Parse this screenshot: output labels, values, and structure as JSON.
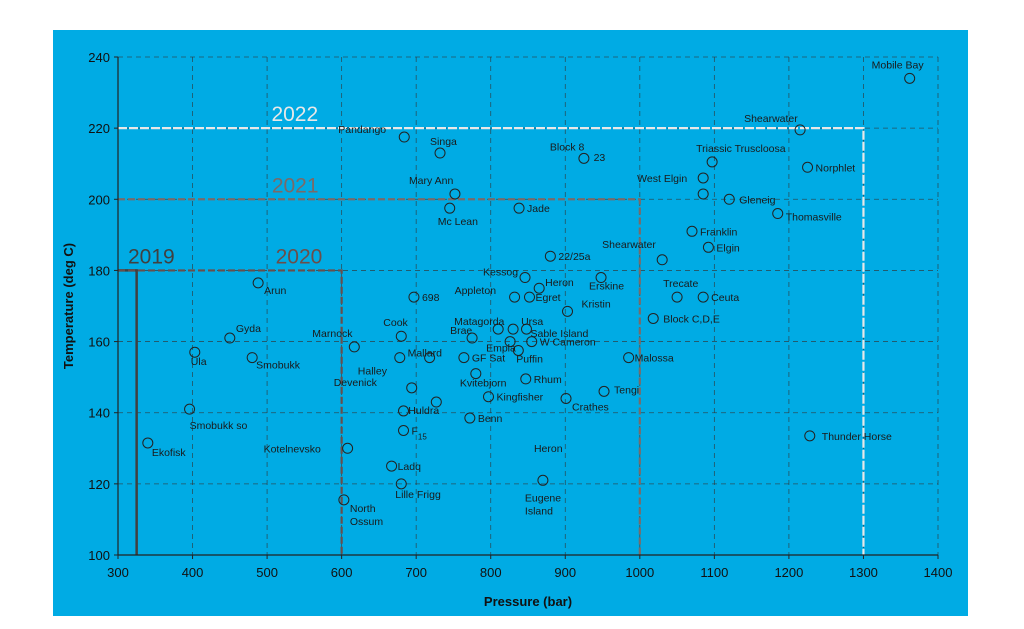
{
  "chart_data": {
    "type": "scatter",
    "title": "",
    "xlabel": "Pressure (bar)",
    "ylabel": "Temperature (deg C)",
    "xlim": [
      300,
      1400
    ],
    "ylim": [
      100,
      240
    ],
    "xticks": [
      300,
      400,
      500,
      600,
      700,
      800,
      900,
      1000,
      1100,
      1200,
      1300,
      1400
    ],
    "yticks": [
      100,
      120,
      140,
      160,
      180,
      200,
      220,
      240
    ],
    "grid": true,
    "colors": {
      "background": "#00abe4",
      "text": "#111111",
      "points": "#1a1a1a"
    },
    "regions": [
      {
        "label": "2019",
        "pressure_max": 325,
        "temperature_max": 180,
        "color": "#404040"
      },
      {
        "label": "2020",
        "pressure_max": 600,
        "temperature_max": 180,
        "color": "#6b4e4a"
      },
      {
        "label": "2021",
        "pressure_max": 1000,
        "temperature_max": 200,
        "color": "#7a6a68"
      },
      {
        "label": "2022",
        "pressure_max": 1300,
        "temperature_max": 220,
        "color": "#e8e8e8"
      }
    ],
    "points": [
      {
        "label": "Mobile Bay",
        "x": 1362,
        "y": 234
      },
      {
        "label": "Shearwater",
        "x": 1215,
        "y": 219.5
      },
      {
        "label": "Triassic Truscloosa",
        "x": 1097,
        "y": 210.5
      },
      {
        "label": "Norphlet",
        "x": 1225,
        "y": 209
      },
      {
        "label": "West Elgin",
        "x": 1085,
        "y": 206
      },
      {
        "label": "",
        "x": 1085,
        "y": 201.5
      },
      {
        "label": "Gleneig",
        "x": 1120,
        "y": 200
      },
      {
        "label": "Thomasville",
        "x": 1185,
        "y": 196
      },
      {
        "label": "Franklin",
        "x": 1070,
        "y": 191
      },
      {
        "label": "Elgin",
        "x": 1092,
        "y": 186.5
      },
      {
        "label": "Shearwater",
        "x": 1030,
        "y": 183
      },
      {
        "label": "Trecate",
        "x": 1050,
        "y": 172.5
      },
      {
        "label": "Ceuta",
        "x": 1085,
        "y": 172.5
      },
      {
        "label": "Block C,D,E",
        "x": 1018,
        "y": 166.5
      },
      {
        "label": "Malossa",
        "x": 985,
        "y": 155.5
      },
      {
        "label": "Tengi",
        "x": 952,
        "y": 146
      },
      {
        "label": "Crathes",
        "x": 901,
        "y": 144
      },
      {
        "label": "Thunder Horse",
        "x": 1228,
        "y": 133.5
      },
      {
        "label": "Pandango",
        "x": 684,
        "y": 217.5
      },
      {
        "label": "Singa",
        "x": 732,
        "y": 213
      },
      {
        "label": "Block 8",
        "x": 925,
        "y": 211.5
      },
      {
        "label": "Mary Ann",
        "x": 752,
        "y": 201.5
      },
      {
        "label": "Mc Lean",
        "x": 745,
        "y": 197.5
      },
      {
        "label": "Jade",
        "x": 838,
        "y": 197.5
      },
      {
        "label": "22/25a",
        "x": 880,
        "y": 184
      },
      {
        "label": "Kessog",
        "x": 846,
        "y": 178
      },
      {
        "label": "Heron",
        "x": 865,
        "y": 175
      },
      {
        "label": "Erskine",
        "x": 948,
        "y": 178
      },
      {
        "label": "Appleton",
        "x": 832,
        "y": 172.5
      },
      {
        "label": "Egret",
        "x": 852,
        "y": 172.5
      },
      {
        "label": "Kristin",
        "x": 903,
        "y": 168.5
      },
      {
        "label": "698",
        "x": 697,
        "y": 172.5
      },
      {
        "label": "Arun",
        "x": 488,
        "y": 176.5
      },
      {
        "label": "Matagorda",
        "x": 810,
        "y": 163.5
      },
      {
        "label": "Ursa",
        "x": 830,
        "y": 163.5
      },
      {
        "label": "Sable Island",
        "x": 848,
        "y": 163.5
      },
      {
        "label": "Brae",
        "x": 775,
        "y": 161
      },
      {
        "label": "Empla",
        "x": 826,
        "y": 160
      },
      {
        "label": "W Cameron",
        "x": 855,
        "y": 160
      },
      {
        "label": "Cook",
        "x": 680,
        "y": 161.5
      },
      {
        "label": "Marnock",
        "x": 617,
        "y": 158.5
      },
      {
        "label": "Mallard",
        "x": 718,
        "y": 155.5
      },
      {
        "label": "Halley",
        "x": 678,
        "y": 155.5
      },
      {
        "label": "GF Sat",
        "x": 764,
        "y": 155.5
      },
      {
        "label": "Puffin",
        "x": 837,
        "y": 157.5
      },
      {
        "label": "Gyda",
        "x": 450,
        "y": 161
      },
      {
        "label": "Ula",
        "x": 403,
        "y": 157
      },
      {
        "label": "Smobukk",
        "x": 480,
        "y": 155.5
      },
      {
        "label": "Kvitebjorn",
        "x": 780,
        "y": 151
      },
      {
        "label": "Rhum",
        "x": 847,
        "y": 149.5
      },
      {
        "label": "Devenick",
        "x": 694,
        "y": 147
      },
      {
        "label": "Kingfisher",
        "x": 797,
        "y": 144.5
      },
      {
        "label": "Huldra",
        "x": 727,
        "y": 143
      },
      {
        "label": "",
        "x": 683,
        "y": 140.5
      },
      {
        "label": "Benn",
        "x": 772,
        "y": 138.5
      },
      {
        "label": "Smobukk so",
        "x": 396,
        "y": 141
      },
      {
        "label": "F15",
        "x": 683,
        "y": 135
      },
      {
        "label": "Ekofisk",
        "x": 340,
        "y": 131.5
      },
      {
        "label": "Kotelnevsko",
        "x": 608,
        "y": 130
      },
      {
        "label": "Ladq",
        "x": 667,
        "y": 125
      },
      {
        "label": "Lille Frigg",
        "x": 680,
        "y": 120
      },
      {
        "label": "Eugene Island",
        "x": 870,
        "y": 121
      },
      {
        "label": "North Ossum",
        "x": 603,
        "y": 115.5
      }
    ],
    "annotations": [
      {
        "text": "23",
        "x": 938,
        "y": 210.8
      },
      {
        "text": "Heron",
        "x": 858,
        "y": 129
      }
    ]
  }
}
